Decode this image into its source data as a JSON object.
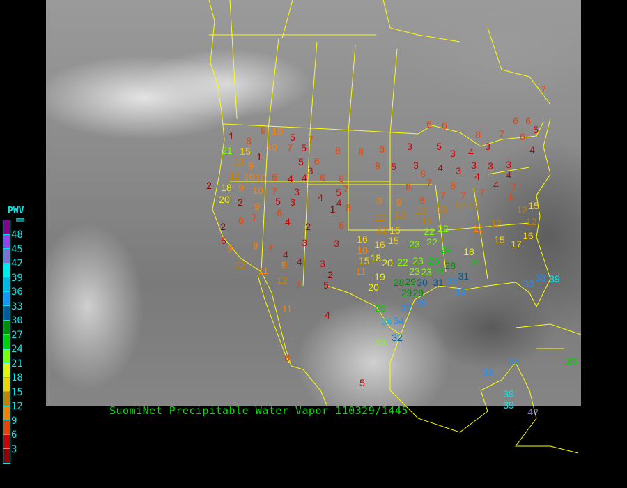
{
  "title": "SuomiNet Precipitable Water Vapor 110329/1445",
  "legend": {
    "title": "PWV",
    "unit": "mm",
    "labels": [
      "48",
      "45",
      "42",
      "39",
      "36",
      "33",
      "30",
      "27",
      "24",
      "21",
      "18",
      "15",
      "12",
      "9",
      "6",
      "3"
    ],
    "colors": [
      "#8b008b",
      "#9a40f0",
      "#8070d0",
      "#00ecec",
      "#00b8e8",
      "#1e90ff",
      "#005a9a",
      "#008c00",
      "#00d000",
      "#80ff00",
      "#f0f000",
      "#f8d000",
      "#c88000",
      "#ff8000",
      "#f04000",
      "#d00000",
      "#900000"
    ]
  },
  "map": {
    "border_color": "#ffff00"
  },
  "stations": [
    7,
    6,
    6,
    6,
    6,
    5,
    8,
    7,
    6,
    8,
    10,
    5,
    7,
    1,
    8,
    10,
    7,
    5,
    8,
    8,
    6,
    3,
    5,
    3,
    4,
    3,
    4,
    21,
    15,
    1,
    13,
    9,
    5,
    6,
    3,
    8,
    5,
    3,
    4,
    3,
    3,
    3,
    3,
    12,
    10,
    10,
    6,
    4,
    4,
    6,
    6,
    8,
    4,
    4,
    2,
    18,
    9,
    10,
    7,
    3,
    5,
    7,
    8,
    7,
    8,
    4,
    7,
    20,
    2,
    9,
    5,
    3,
    4,
    4,
    9,
    9,
    8,
    7,
    7,
    7,
    8,
    15,
    1,
    8,
    12,
    6,
    6,
    7,
    4,
    2,
    6,
    12,
    13,
    13,
    13,
    12,
    12,
    12,
    2,
    13,
    12,
    15,
    22,
    22,
    11,
    12,
    5,
    9,
    9,
    7,
    4,
    3,
    3,
    16,
    16,
    15,
    23,
    22,
    24,
    18,
    15,
    17,
    16,
    10,
    15,
    18,
    12,
    11,
    9,
    4,
    3,
    20,
    22,
    23,
    26,
    28,
    24,
    11,
    23,
    23,
    24,
    19,
    12,
    7,
    2,
    5,
    20,
    28,
    29,
    30,
    31,
    33,
    31,
    33,
    29,
    29,
    33,
    11,
    4,
    26,
    33,
    35,
    36,
    34,
    23,
    32,
    8,
    5,
    33,
    34,
    26,
    39,
    42,
    39,
    33,
    39
  ]
}
